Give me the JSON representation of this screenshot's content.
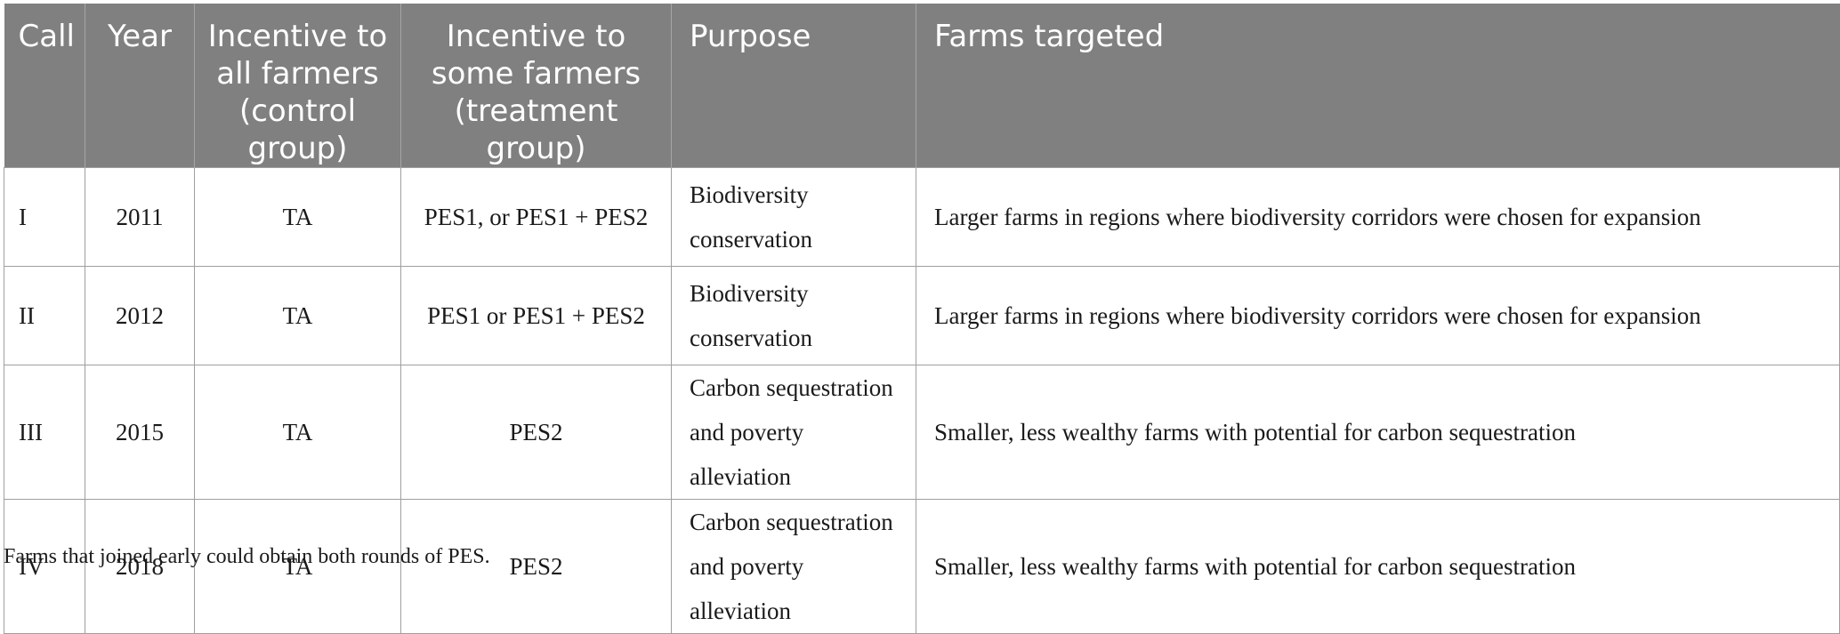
{
  "table": {
    "headers": [
      {
        "label": "Call",
        "align": "left"
      },
      {
        "label": "Year",
        "align": "center"
      },
      {
        "label": "Incentive to all farmers (control group)",
        "align": "center"
      },
      {
        "label": "Incentive to some farmers (treatment group)",
        "align": "center"
      },
      {
        "label": "Purpose",
        "align": "left"
      },
      {
        "label": "Farms targeted",
        "align": "left"
      }
    ],
    "rows": [
      [
        "I",
        "2011",
        "TA",
        "PES1, or PES1 + PES2",
        "Biodiversity conservation",
        "Larger farms in regions where biodiversity corridors were chosen for expansion"
      ],
      [
        "II",
        "2012",
        "TA",
        "PES1 or PES1 + PES2",
        "Biodiversity conservation",
        "Larger farms in regions where biodiversity corridors were chosen for expansion"
      ],
      [
        "III",
        "2015",
        "TA",
        "PES2",
        "Carbon sequestration and poverty alleviation",
        "Smaller, less wealthy farms with potential for carbon sequestration"
      ],
      [
        "IV",
        "2018",
        "TA",
        "PES2",
        "Carbon sequestration and poverty alleviation",
        "Smaller, less wealthy farms with potential for carbon sequestration"
      ]
    ]
  },
  "footnote": "Farms that joined early could obtain both rounds of PES."
}
